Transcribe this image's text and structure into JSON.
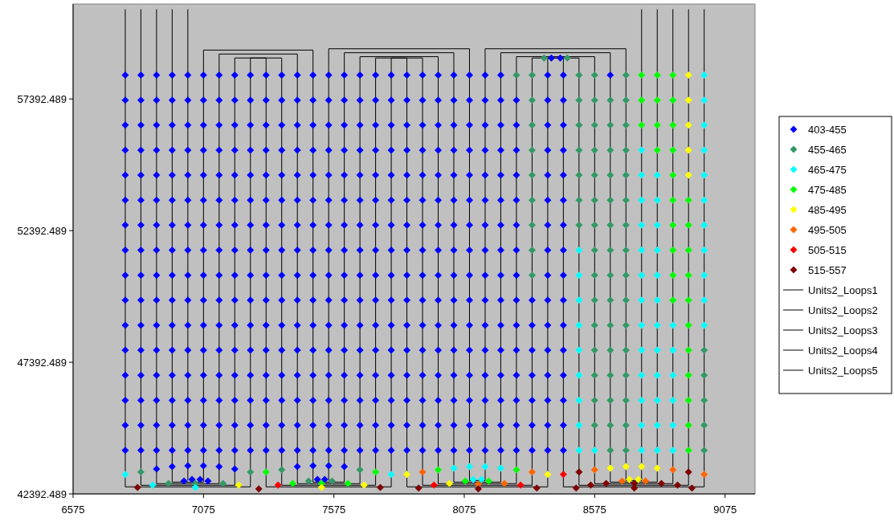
{
  "chart_data": {
    "type": "scatter",
    "marker": "diamond",
    "legend": "right",
    "xlim": [
      6575,
      9190
    ],
    "ylim": [
      42392.489,
      61000
    ],
    "xticks": [
      6575,
      7075,
      7575,
      8075,
      8575,
      9075
    ],
    "yticks": [
      42392.489,
      47392.489,
      52392.489,
      57392.489
    ],
    "series": [
      {
        "name": "403-455",
        "color": "#0000ff",
        "x": [
          6775,
          6835,
          6895,
          6955,
          7015,
          7075,
          7135,
          7195,
          7255,
          7315,
          7375,
          7435,
          7495,
          7555,
          7615,
          7675,
          7735,
          7795,
          7855,
          7915,
          7975,
          8035,
          8095,
          8155,
          8215,
          8395,
          8455,
          8635,
          6775,
          6835,
          6895,
          6955,
          7015,
          7075,
          7135,
          7195,
          7255,
          7315,
          7375,
          7435,
          7495,
          7555,
          7615,
          7675,
          7735,
          7795,
          7855,
          7915,
          7975,
          8035,
          8095,
          8155,
          8215,
          8275,
          8395,
          8455,
          6775,
          6835,
          6895,
          6955,
          7015,
          7075,
          7135,
          7195,
          7255,
          7315,
          7375,
          7435,
          7495,
          7555,
          7615,
          7675,
          7735,
          7795,
          7855,
          7915,
          7975,
          8035,
          8095,
          8155,
          8215,
          8275,
          8395,
          8455,
          6775,
          6835,
          6895,
          6955,
          7015,
          7075,
          7135,
          7195,
          7255,
          7315,
          7375,
          7435,
          7495,
          7555,
          7615,
          7675,
          7735,
          7795,
          7855,
          7915,
          7975,
          8035,
          8095,
          8155,
          8215,
          8275,
          8395,
          8455,
          6775,
          6835,
          6895,
          6955,
          7015,
          7075,
          7135,
          7195,
          7255,
          7315,
          7375,
          7435,
          7495,
          7555,
          7615,
          7675,
          7735,
          7795,
          7855,
          7915,
          7975,
          8035,
          8095,
          8155,
          8215,
          8275,
          8395,
          8455,
          6775,
          6835,
          6895,
          6955,
          7015,
          7075,
          7135,
          7195,
          7255,
          7315,
          7375,
          7435,
          7495,
          7555,
          7615,
          7675,
          7735,
          7795,
          7855,
          7915,
          7975,
          8035,
          8095,
          8155,
          8215,
          8275,
          8395,
          8455,
          6775,
          6835,
          6895,
          6955,
          7015,
          7075,
          7135,
          7195,
          7255,
          7315,
          7375,
          7435,
          7495,
          7555,
          7615,
          7675,
          7735,
          7795,
          7855,
          7915,
          7975,
          8035,
          8095,
          8155,
          8215,
          8275,
          8395,
          8455,
          6775,
          6835,
          6895,
          6955,
          7015,
          7075,
          7135,
          7195,
          7255,
          7315,
          7375,
          7435,
          7495,
          7555,
          7615,
          7675,
          7735,
          7795,
          7855,
          7915,
          7975,
          8035,
          8095,
          8155,
          8215,
          8275,
          8395,
          8455,
          6775,
          6835,
          6895,
          6955,
          7015,
          7075,
          7135,
          7195,
          7255,
          7315,
          7375,
          7435,
          7495,
          7555,
          7615,
          7675,
          7735,
          7795,
          7855,
          7915,
          7975,
          8035,
          8095,
          8155,
          8215,
          8275,
          8395,
          8455,
          6775,
          6835,
          6895,
          6955,
          7015,
          7075,
          7135,
          7195,
          7255,
          7315,
          7375,
          7435,
          7495,
          7555,
          7615,
          7675,
          7735,
          7795,
          7855,
          7915,
          7975,
          8035,
          8095,
          8155,
          8215,
          8275,
          8335,
          8395,
          8455,
          6775,
          6835,
          6895,
          6955,
          7015,
          7075,
          7135,
          7195,
          7255,
          7315,
          7375,
          7435,
          7495,
          7555,
          7615,
          7675,
          7735,
          7795,
          7855,
          7915,
          7975,
          8035,
          8095,
          8155,
          8215,
          8275,
          8335,
          8395,
          8455,
          6775,
          6835,
          6895,
          6955,
          7015,
          7075,
          7135,
          7195,
          7255,
          7315,
          7375,
          7435,
          7495,
          7555,
          7615,
          7675,
          7735,
          7795,
          7855,
          7915,
          7975,
          8035,
          8095,
          8155,
          8215,
          8275,
          8335,
          8395,
          8455,
          6775,
          6835,
          6895,
          6955,
          7015,
          7075,
          7135,
          7195,
          7255,
          7315,
          7375,
          7435,
          7495,
          7555,
          7615,
          7675,
          7735,
          7795,
          7855,
          7915,
          7975,
          8035,
          8095,
          8155,
          8215,
          8275,
          8335,
          8395,
          8455,
          6775,
          6835,
          6895,
          6955,
          7015,
          7075,
          7135,
          7195,
          7255,
          7315,
          7375,
          7435,
          7495,
          7555,
          7615,
          7675,
          7735,
          7795,
          7855,
          7915,
          7975,
          8035,
          8095,
          8155,
          8215,
          8275,
          8335,
          8395,
          8455,
          6775,
          6835,
          6895,
          6955,
          7015,
          7075,
          7135,
          7195,
          7255,
          7315,
          7375,
          7435,
          7495,
          7555,
          7615,
          7675,
          7735,
          7795,
          7855,
          7915,
          7975,
          8035,
          8095,
          8155,
          8215,
          8275,
          8335,
          8395,
          8455,
          6775,
          6835,
          6895,
          6955,
          7015,
          7075,
          7135,
          7195,
          7255,
          7315,
          7375,
          7435,
          7495,
          7555,
          7615,
          7675,
          7735,
          7795,
          7855,
          7915,
          7975,
          8035,
          8095,
          8155,
          8215,
          8275,
          8335,
          8395,
          8455,
          6895,
          6955,
          7015,
          7075,
          7135,
          7195,
          7435,
          7495,
          7555,
          7615,
          7000,
          7031,
          7062,
          7092,
          7512,
          7540,
          8409,
          8443
        ],
        "values": [
          58300,
          58300,
          58300,
          58300,
          58300,
          58300,
          58300,
          58300,
          58300,
          58300,
          58300,
          58300,
          58300,
          58300,
          58300,
          58300,
          58300,
          58300,
          58300,
          58300,
          58300,
          58300,
          58300,
          58300,
          58300,
          58300,
          58300,
          58300,
          57350,
          57350,
          57350,
          57350,
          57350,
          57350,
          57350,
          57350,
          57350,
          57350,
          57350,
          57350,
          57350,
          57350,
          57350,
          57350,
          57350,
          57350,
          57350,
          57350,
          57350,
          57350,
          57350,
          57350,
          57350,
          57350,
          57350,
          57350,
          56400,
          56400,
          56400,
          56400,
          56400,
          56400,
          56400,
          56400,
          56400,
          56400,
          56400,
          56400,
          56400,
          56400,
          56400,
          56400,
          56400,
          56400,
          56400,
          56400,
          56400,
          56400,
          56400,
          56400,
          56400,
          56400,
          56400,
          56400,
          55450,
          55450,
          55450,
          55450,
          55450,
          55450,
          55450,
          55450,
          55450,
          55450,
          55450,
          55450,
          55450,
          55450,
          55450,
          55450,
          55450,
          55450,
          55450,
          55450,
          55450,
          55450,
          55450,
          55450,
          55450,
          55450,
          55450,
          55450,
          54500,
          54500,
          54500,
          54500,
          54500,
          54500,
          54500,
          54500,
          54500,
          54500,
          54500,
          54500,
          54500,
          54500,
          54500,
          54500,
          54500,
          54500,
          54500,
          54500,
          54500,
          54500,
          54500,
          54500,
          54500,
          54500,
          54500,
          54500,
          53550,
          53550,
          53550,
          53550,
          53550,
          53550,
          53550,
          53550,
          53550,
          53550,
          53550,
          53550,
          53550,
          53550,
          53550,
          53550,
          53550,
          53550,
          53550,
          53550,
          53550,
          53550,
          53550,
          53550,
          53550,
          53550,
          53550,
          53550,
          52600,
          52600,
          52600,
          52600,
          52600,
          52600,
          52600,
          52600,
          52600,
          52600,
          52600,
          52600,
          52600,
          52600,
          52600,
          52600,
          52600,
          52600,
          52600,
          52600,
          52600,
          52600,
          52600,
          52600,
          52600,
          52600,
          52600,
          52600,
          51650,
          51650,
          51650,
          51650,
          51650,
          51650,
          51650,
          51650,
          51650,
          51650,
          51650,
          51650,
          51650,
          51650,
          51650,
          51650,
          51650,
          51650,
          51650,
          51650,
          51650,
          51650,
          51650,
          51650,
          51650,
          51650,
          51650,
          51650,
          50700,
          50700,
          50700,
          50700,
          50700,
          50700,
          50700,
          50700,
          50700,
          50700,
          50700,
          50700,
          50700,
          50700,
          50700,
          50700,
          50700,
          50700,
          50700,
          50700,
          50700,
          50700,
          50700,
          50700,
          50700,
          50700,
          50700,
          50700,
          49750,
          49750,
          49750,
          49750,
          49750,
          49750,
          49750,
          49750,
          49750,
          49750,
          49750,
          49750,
          49750,
          49750,
          49750,
          49750,
          49750,
          49750,
          49750,
          49750,
          49750,
          49750,
          49750,
          49750,
          49750,
          49750,
          49750,
          49750,
          49750,
          48800,
          48800,
          48800,
          48800,
          48800,
          48800,
          48800,
          48800,
          48800,
          48800,
          48800,
          48800,
          48800,
          48800,
          48800,
          48800,
          48800,
          48800,
          48800,
          48800,
          48800,
          48800,
          48800,
          48800,
          48800,
          48800,
          48800,
          48800,
          48800,
          47850,
          47850,
          47850,
          47850,
          47850,
          47850,
          47850,
          47850,
          47850,
          47850,
          47850,
          47850,
          47850,
          47850,
          47850,
          47850,
          47850,
          47850,
          47850,
          47850,
          47850,
          47850,
          47850,
          47850,
          47850,
          47850,
          47850,
          47850,
          47850,
          46900,
          46900,
          46900,
          46900,
          46900,
          46900,
          46900,
          46900,
          46900,
          46900,
          46900,
          46900,
          46900,
          46900,
          46900,
          46900,
          46900,
          46900,
          46900,
          46900,
          46900,
          46900,
          46900,
          46900,
          46900,
          46900,
          46900,
          46900,
          46900,
          45950,
          45950,
          45950,
          45950,
          45950,
          45950,
          45950,
          45950,
          45950,
          45950,
          45950,
          45950,
          45950,
          45950,
          45950,
          45950,
          45950,
          45950,
          45950,
          45950,
          45950,
          45950,
          45950,
          45950,
          45950,
          45950,
          45950,
          45950,
          45950,
          45000,
          45000,
          45000,
          45000,
          45000,
          45000,
          45000,
          45000,
          45000,
          45000,
          45000,
          45000,
          45000,
          45000,
          45000,
          45000,
          45000,
          45000,
          45000,
          45000,
          45000,
          45000,
          45000,
          45000,
          45000,
          45000,
          45000,
          45000,
          45000,
          44050,
          44050,
          44050,
          44050,
          44050,
          44050,
          44050,
          44050,
          44050,
          44050,
          44050,
          44050,
          44050,
          44050,
          44050,
          44050,
          44050,
          44050,
          44050,
          44050,
          44050,
          44050,
          44050,
          44050,
          44050,
          44050,
          44050,
          44050,
          44050,
          43340,
          43430,
          43460,
          43460,
          43430,
          43340,
          43430,
          43460,
          43460,
          43430,
          42880,
          42940,
          42940,
          42880,
          42940,
          42940,
          58950,
          58950
        ]
      },
      {
        "name": "455-465",
        "color": "#339966",
        "x": [
          8275,
          8335,
          8335,
          8335,
          8335,
          8335,
          8335,
          8335,
          8335,
          8335,
          8515,
          8515,
          8515,
          8515,
          8515,
          8515,
          8515,
          8575,
          8575,
          8575,
          8575,
          8575,
          8575,
          8575,
          8575,
          8575,
          8575,
          8575,
          8575,
          8575,
          8575,
          8575,
          8635,
          8635,
          8635,
          8635,
          8635,
          8635,
          8635,
          8635,
          8635,
          8635,
          8635,
          8635,
          8635,
          8635,
          8635,
          8695,
          8695,
          8695,
          8695,
          8695,
          8695,
          8695,
          8695,
          8695,
          8695,
          8695,
          8695,
          8695,
          8695,
          8695,
          8695,
          8995,
          8995,
          8995,
          8995,
          8995,
          6835,
          7255,
          7375,
          7675,
          6941,
          7044,
          7150,
          7478,
          7568,
          8381,
          8470
        ],
        "values": [
          58300,
          58300,
          57350,
          56400,
          55450,
          54500,
          53550,
          52600,
          51650,
          50700,
          58300,
          57350,
          56400,
          55450,
          54500,
          53550,
          52600,
          58300,
          57350,
          56400,
          55450,
          54500,
          53550,
          52600,
          51650,
          50700,
          49750,
          48800,
          47850,
          46900,
          45950,
          45000,
          57350,
          56400,
          55450,
          54500,
          53550,
          52600,
          51650,
          50700,
          49750,
          48800,
          47850,
          46900,
          45950,
          45000,
          44050,
          58300,
          57350,
          56400,
          55450,
          54500,
          53550,
          52600,
          51650,
          50700,
          49750,
          48800,
          47850,
          46900,
          45950,
          45000,
          44050,
          47850,
          46900,
          45950,
          45000,
          44050,
          43220,
          43220,
          43310,
          43310,
          42790,
          42790,
          42790,
          42880,
          42880,
          58950,
          58950
        ]
      },
      {
        "name": "465-475",
        "color": "#00ffff",
        "x": [
          8515,
          8515,
          8515,
          8515,
          8515,
          8515,
          8515,
          8515,
          8515,
          8575,
          8755,
          8755,
          8755,
          8755,
          8755,
          8755,
          8755,
          8755,
          8755,
          8755,
          8755,
          8755,
          8755,
          8815,
          8815,
          8815,
          8815,
          8815,
          8815,
          8815,
          8815,
          8815,
          8815,
          8815,
          8815,
          8875,
          8875,
          8875,
          8875,
          8875,
          8875,
          8995,
          8995,
          8995,
          8995,
          8995,
          8995,
          8995,
          8995,
          8995,
          8995,
          8995,
          6775,
          7795,
          8035,
          8095,
          8155,
          8215,
          6880,
          7044,
          8109,
          8141
        ],
        "values": [
          51650,
          50700,
          49750,
          48800,
          47850,
          46900,
          45950,
          45000,
          44050,
          44050,
          55450,
          54500,
          53550,
          52600,
          51650,
          50700,
          49750,
          48800,
          47850,
          46900,
          45950,
          45000,
          44050,
          54500,
          53550,
          52600,
          51650,
          50700,
          49750,
          48800,
          47850,
          46900,
          45950,
          45000,
          44050,
          48800,
          47850,
          46900,
          45950,
          45000,
          44050,
          58300,
          57350,
          56400,
          55450,
          54500,
          53550,
          52600,
          51650,
          50700,
          49750,
          48800,
          43130,
          43130,
          43370,
          43430,
          43430,
          43370,
          42730,
          42640,
          42940,
          42940
        ]
      },
      {
        "name": "475-485",
        "color": "#00ff00",
        "x": [
          8755,
          8755,
          8755,
          8815,
          8815,
          8815,
          8815,
          8875,
          8875,
          8875,
          8875,
          8875,
          8875,
          8875,
          8875,
          8875,
          8875,
          8935,
          8935,
          8935,
          8935,
          8935,
          8935,
          8935,
          8935,
          8935,
          8935,
          8935,
          7315,
          7735,
          7975,
          8275,
          7417,
          7528,
          7629,
          8079,
          8169
        ],
        "values": [
          58300,
          57350,
          56400,
          58300,
          57350,
          56400,
          55450,
          58300,
          57350,
          56400,
          55450,
          54500,
          53550,
          52600,
          51650,
          50700,
          49750,
          53550,
          52600,
          51650,
          50700,
          49750,
          48800,
          47850,
          46900,
          45950,
          45000,
          44050,
          43220,
          43220,
          43310,
          43310,
          42790,
          42790,
          42790,
          42880,
          42880
        ]
      },
      {
        "name": "485-495",
        "color": "#ffff00",
        "x": [
          8935,
          8935,
          8935,
          8935,
          8935,
          7855,
          8395,
          8635,
          8695,
          8755,
          8815,
          7210,
          7528,
          7691,
          8018,
          8708,
          8742
        ],
        "values": [
          58300,
          57350,
          56400,
          55450,
          54500,
          43130,
          43130,
          43370,
          43430,
          43430,
          43370,
          42730,
          42640,
          42730,
          42790,
          42940,
          42940
        ]
      },
      {
        "name": "495-505",
        "color": "#ff6600",
        "x": [
          7915,
          8335,
          8575,
          8875,
          8995,
          8129,
          8229,
          8680,
          8770
        ],
        "values": [
          43220,
          43220,
          43310,
          43310,
          43130,
          42760,
          42790,
          42880,
          42880
        ]
      },
      {
        "name": "505-515",
        "color": "#ff0000",
        "x": [
          8455,
          7361,
          7959,
          8291
        ],
        "values": [
          43130,
          42730,
          42730,
          42730
        ]
      },
      {
        "name": "515-557",
        "color": "#800000",
        "x": [
          8515,
          8935,
          6822,
          7287,
          7753,
          7900,
          8129,
          8353,
          8504,
          8560,
          8619,
          8727,
          8727,
          8831,
          8893,
          8948
        ],
        "values": [
          43220,
          43220,
          42640,
          42580,
          42640,
          42610,
          42580,
          42610,
          42610,
          42730,
          42790,
          42790,
          42610,
          42790,
          42730,
          42610
        ]
      },
      {
        "name": "Units2_Loops1",
        "type": "line",
        "marker": "none",
        "color": "#000000",
        "x": [
          6775,
          6775,
          null,
          6835,
          6835,
          null,
          6895,
          6895,
          null,
          6955,
          6955,
          null,
          7015,
          7015,
          null,
          6775,
          7255,
          null,
          6835,
          7195,
          null,
          6895,
          7135,
          null,
          6955,
          7075
        ],
        "values": [
          60800,
          42660,
          null,
          60800,
          42720,
          null,
          60800,
          42780,
          null,
          60800,
          42840,
          null,
          60800,
          42900,
          null,
          42660,
          42660,
          null,
          42720,
          42720,
          null,
          42780,
          42780,
          null,
          42840,
          42840
        ]
      },
      {
        "name": "Units2_Loops2",
        "type": "line",
        "marker": "none",
        "color": "#000000",
        "x": [
          7075,
          7075,
          7495,
          7495,
          null,
          7135,
          7135,
          7435,
          7435,
          null,
          7195,
          7195,
          7375,
          7375,
          null,
          7255,
          7255,
          7315,
          7315,
          null,
          7315,
          7795,
          null,
          7375,
          7735,
          null,
          7435,
          7675,
          null,
          7495,
          7615
        ],
        "values": [
          42840,
          59250,
          59250,
          42840,
          null,
          42780,
          59100,
          59100,
          42780,
          null,
          42720,
          58950,
          58950,
          42720,
          null,
          42660,
          58950,
          58950,
          42660,
          null,
          42660,
          42660,
          null,
          42720,
          42720,
          null,
          42780,
          42780,
          null,
          42840,
          42840
        ]
      },
      {
        "name": "Units2_Loops3",
        "type": "line",
        "marker": "none",
        "color": "#000000",
        "x": [
          7555,
          7555,
          8095,
          8095,
          null,
          7615,
          7615,
          8035,
          8035,
          null,
          7675,
          7675,
          7975,
          7975,
          null,
          7735,
          7735,
          7915,
          7915,
          null,
          7795,
          7795,
          7855,
          7855,
          null,
          7855,
          8395,
          null,
          7915,
          8335,
          null,
          7975,
          8275,
          null,
          8035,
          8215,
          null,
          8095,
          8155
        ],
        "values": [
          42900,
          59300,
          59300,
          42900,
          null,
          42840,
          59150,
          59150,
          42840,
          null,
          42780,
          59000,
          59000,
          42780,
          null,
          42720,
          58950,
          58950,
          42720,
          null,
          42660,
          58950,
          58950,
          42660,
          null,
          42660,
          42660,
          null,
          42720,
          42720,
          null,
          42780,
          42780,
          null,
          42840,
          42840,
          null,
          42900,
          42900
        ]
      },
      {
        "name": "Units2_Loops4",
        "type": "line",
        "marker": "none",
        "color": "#000000",
        "x": [
          8155,
          8155,
          8695,
          8695,
          null,
          8215,
          8215,
          8635,
          8635,
          null,
          8275,
          8275,
          8575,
          8575,
          null,
          8335,
          8335,
          8515,
          8515,
          null,
          8395,
          8395,
          8455,
          8455,
          null,
          8455,
          8995,
          null,
          8515,
          8935,
          null,
          8575,
          8875,
          null,
          8635,
          8815,
          null,
          8695,
          8755
        ],
        "values": [
          42900,
          59300,
          59300,
          42900,
          null,
          42840,
          59150,
          59150,
          42840,
          null,
          42780,
          59000,
          59000,
          42780,
          null,
          42720,
          58950,
          58950,
          42720,
          null,
          42660,
          58950,
          58950,
          42660,
          null,
          42660,
          42660,
          null,
          42720,
          42720,
          null,
          42780,
          42780,
          null,
          42840,
          42840,
          null,
          42900,
          42900
        ]
      },
      {
        "name": "Units2_Loops5",
        "type": "line",
        "marker": "none",
        "color": "#000000",
        "x": [
          8755,
          8755,
          null,
          8815,
          8815,
          null,
          8875,
          8875,
          null,
          8935,
          8935,
          null,
          8995,
          8995
        ],
        "values": [
          60800,
          42900,
          null,
          60800,
          42840,
          null,
          60800,
          42780,
          null,
          60800,
          42720,
          null,
          60800,
          42660
        ]
      }
    ]
  }
}
